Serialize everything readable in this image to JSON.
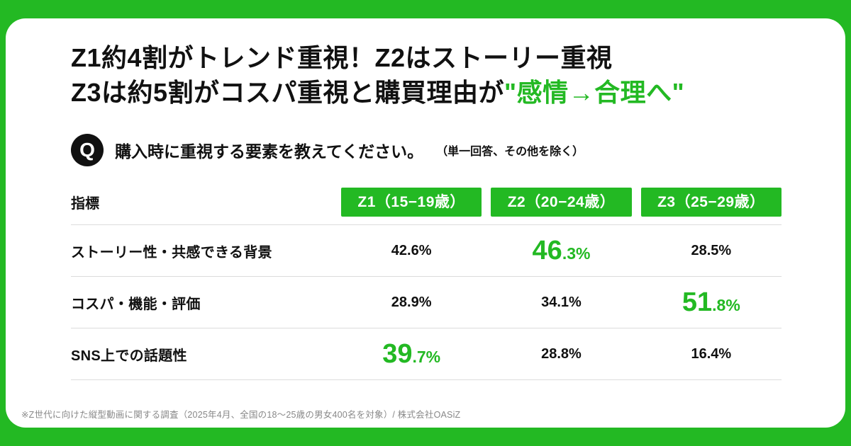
{
  "theme": {
    "green": "#23b923",
    "text": "#111111",
    "divider": "#dcdcdc",
    "footer_text": "#888888"
  },
  "title": {
    "line1": "Z1約4割がトレンド重視！Z2はストーリー重視",
    "line2_black": "Z3は約5割がコスパ重視と購買理由が",
    "line2_green": "\"感情→合理へ\""
  },
  "question": {
    "badge": "Q",
    "text": "購入時に重視する要素を教えてください。",
    "note": "（単一回答、その他を除く）"
  },
  "table": {
    "index_label": "指標",
    "columns": [
      "Z1（15−19歳）",
      "Z2（20−24歳）",
      "Z3（25−29歳）"
    ],
    "rows": [
      {
        "label": "ストーリー性・共感できる背景",
        "cells": [
          {
            "text": "42.6%"
          },
          {
            "big": "46",
            "small": ".3%"
          },
          {
            "text": "28.5%"
          }
        ]
      },
      {
        "label": "コスパ・機能・評価",
        "cells": [
          {
            "text": "28.9%"
          },
          {
            "text": "34.1%"
          },
          {
            "big": "51",
            "small": ".8%"
          }
        ]
      },
      {
        "label": "SNS上での話題性",
        "cells": [
          {
            "big": "39",
            "small": ".7%"
          },
          {
            "text": "28.8%"
          },
          {
            "text": "16.4%"
          }
        ]
      }
    ]
  },
  "footer": "※Z世代に向けた縦型動画に関する調査（2025年4月、全国の18～25歳の男女400名を対象）/ 株式会社OASiZ",
  "chart_data": {
    "type": "table",
    "title": "購入時に重視する要素（単一回答、その他を除く）",
    "categories": [
      "Z1（15−19歳）",
      "Z2（20−24歳）",
      "Z3（25−29歳）"
    ],
    "series": [
      {
        "name": "ストーリー性・共感できる背景",
        "values": [
          42.6,
          46.3,
          28.5
        ]
      },
      {
        "name": "コスパ・機能・評価",
        "values": [
          28.9,
          34.1,
          51.8
        ]
      },
      {
        "name": "SNS上での話題性",
        "values": [
          39.7,
          28.8,
          16.4
        ]
      }
    ],
    "unit": "%",
    "highlights": [
      {
        "row": "ストーリー性・共感できる背景",
        "column": "Z2（20−24歳）",
        "value": 46.3
      },
      {
        "row": "コスパ・機能・評価",
        "column": "Z3（25−29歳）",
        "value": 51.8
      },
      {
        "row": "SNS上での話題性",
        "column": "Z1（15−19歳）",
        "value": 39.7
      }
    ]
  }
}
